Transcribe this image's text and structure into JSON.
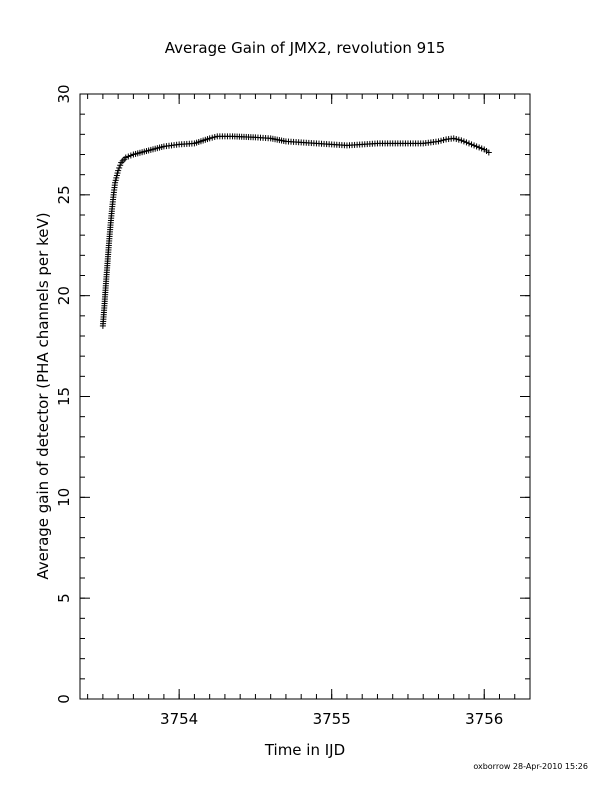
{
  "chart_data": {
    "type": "scatter",
    "title": "Average Gain of JMX2, revolution 915",
    "xlabel": "Time in IJD",
    "ylabel": "Average gain of detector (PHA channels per keV)",
    "xlim": [
      3753.35,
      3756.3
    ],
    "ylim": [
      0,
      30
    ],
    "x_ticks": [
      3754,
      3755,
      3756
    ],
    "y_ticks": [
      0,
      5,
      10,
      15,
      20,
      25,
      30
    ],
    "x_tick_labels": [
      "3754",
      "3755",
      "3756"
    ],
    "y_tick_labels": [
      "0",
      "5",
      "10",
      "15",
      "20",
      "25",
      "30"
    ],
    "x_minor_step": 0.1,
    "y_minor_step": 1,
    "grid": false,
    "marker": "+",
    "series": [
      {
        "x": [
          3753.5,
          3753.51,
          3753.52,
          3753.53,
          3753.54,
          3753.55,
          3753.56,
          3753.57,
          3753.58,
          3753.6,
          3753.62,
          3753.65,
          3753.7,
          3753.8,
          3753.9,
          3754.0,
          3754.1,
          3754.2,
          3754.25,
          3754.35,
          3754.5,
          3754.6,
          3754.7,
          3754.8,
          3754.9,
          3755.0,
          3755.1,
          3755.2,
          3755.3,
          3755.4,
          3755.5,
          3755.6,
          3755.7,
          3755.75,
          3755.8,
          3755.85,
          3755.9,
          3755.95,
          3756.0,
          3756.03
        ],
        "y": [
          18.5,
          19.5,
          20.6,
          21.6,
          22.6,
          23.5,
          24.3,
          25.0,
          25.6,
          26.2,
          26.6,
          26.85,
          27.0,
          27.2,
          27.4,
          27.5,
          27.55,
          27.8,
          27.9,
          27.9,
          27.85,
          27.8,
          27.65,
          27.6,
          27.55,
          27.5,
          27.45,
          27.5,
          27.55,
          27.55,
          27.55,
          27.55,
          27.65,
          27.75,
          27.8,
          27.7,
          27.55,
          27.4,
          27.25,
          27.1
        ]
      }
    ]
  },
  "footer": {
    "credit": "oxborrow 28-Apr-2010 15:26"
  }
}
